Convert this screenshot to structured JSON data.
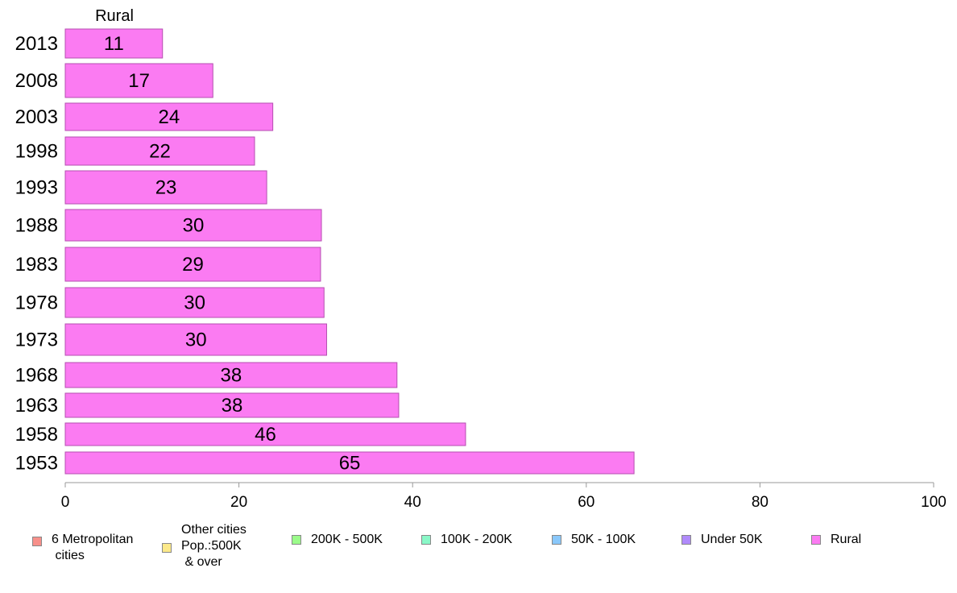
{
  "chart_data": {
    "type": "bar",
    "orientation": "horizontal",
    "title": "Rural",
    "categories": [
      "2013",
      "2008",
      "2003",
      "1998",
      "1993",
      "1988",
      "1983",
      "1978",
      "1973",
      "1968",
      "1963",
      "1958",
      "1953"
    ],
    "values": [
      11.2,
      17.0,
      23.9,
      21.8,
      23.2,
      29.5,
      29.4,
      29.8,
      30.1,
      38.2,
      38.4,
      46.1,
      65.5
    ],
    "value_labels": [
      "11",
      "17",
      "24",
      "22",
      "23",
      "30",
      "29",
      "30",
      "30",
      "38",
      "38",
      "46",
      "65"
    ],
    "xlim": [
      0,
      100
    ],
    "xticks": [
      0,
      20,
      40,
      60,
      80,
      100
    ],
    "xlabel": "",
    "ylabel": "",
    "grid": false,
    "legend": {
      "placement": "bottom",
      "entries": [
        {
          "label": "6 Metropolitan\n cities",
          "color": "#f7908a"
        },
        {
          "label": "Other cities\nPop.:500K\n & over",
          "color": "#fce98a"
        },
        {
          "label": "200K - 500K",
          "color": "#9bfb8a"
        },
        {
          "label": "100K - 200K",
          "color": "#8af8c8"
        },
        {
          "label": "50K - 100K",
          "color": "#8ac8fb"
        },
        {
          "label": "Under 50K",
          "color": "#b08afb"
        },
        {
          "label": "Rural",
          "color": "#fb7bf2"
        }
      ]
    },
    "bar_color": "#fb7bf2",
    "bar_edge_color": "#b54fb0"
  }
}
